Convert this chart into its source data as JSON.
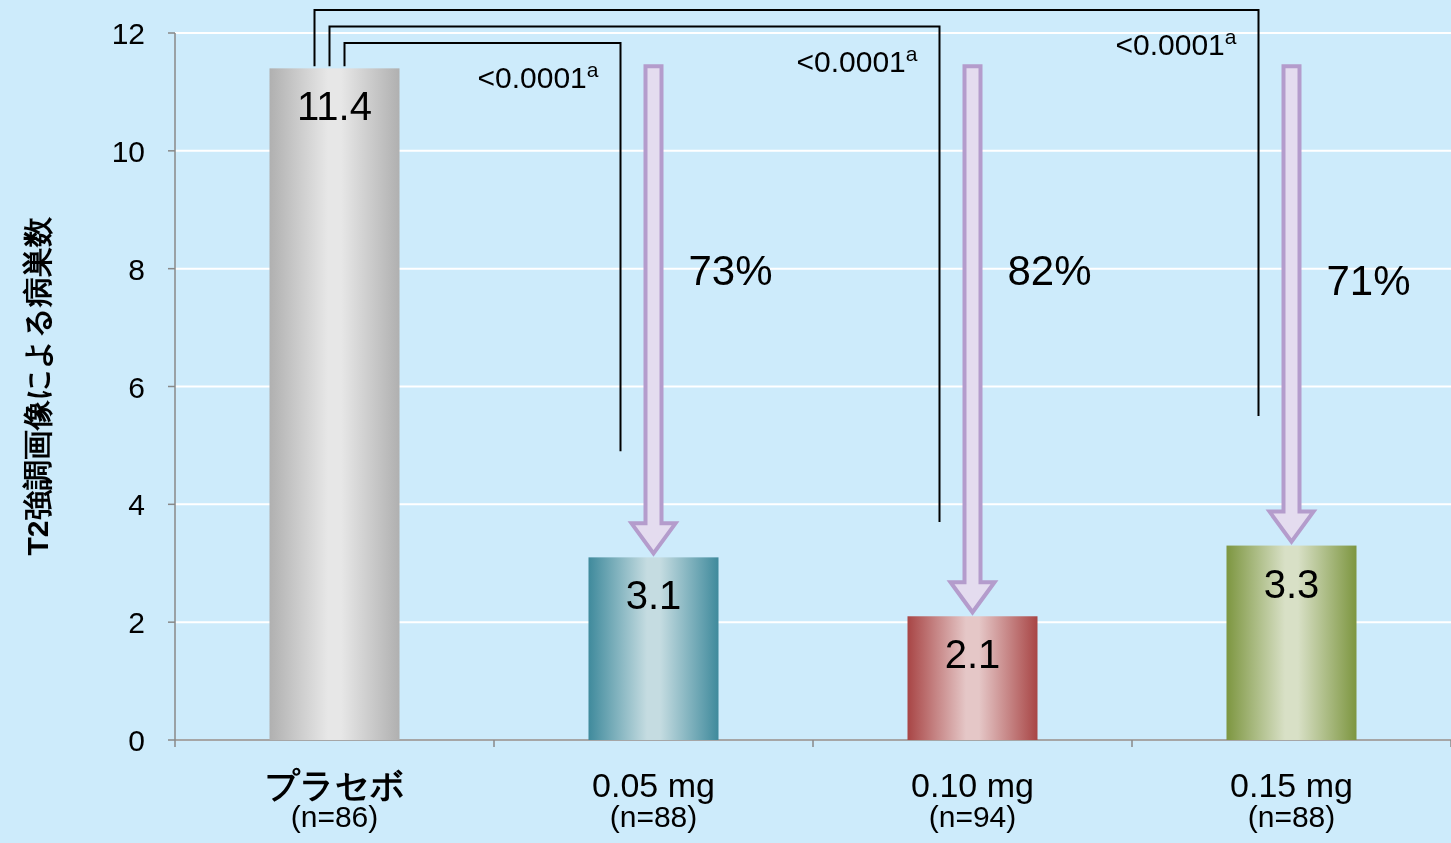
{
  "chart_data": {
    "type": "bar",
    "ylabel": "T2強調画像による病巣数",
    "categories": [
      "プラセボ\n(n=86)",
      "0.05 mg\n(n=88)",
      "0.10 mg\n(n=94)",
      "0.15 mg\n(n=88)"
    ],
    "values": [
      11.4,
      3.1,
      2.1,
      3.3
    ],
    "colors": [
      "#b0b0b0",
      "#3f8a9c",
      "#a84545",
      "#7d9640"
    ],
    "ylim": [
      0,
      12
    ],
    "yticks": [
      0,
      2,
      4,
      6,
      8,
      10,
      12
    ],
    "grid": "y",
    "data_labels": true,
    "annotations": [
      "<0.0001$^{a}$",
      "<0.0001$^{a}$",
      "<0.0001$^{a}$",
      "73%",
      "82%",
      "71%"
    ]
  }
}
